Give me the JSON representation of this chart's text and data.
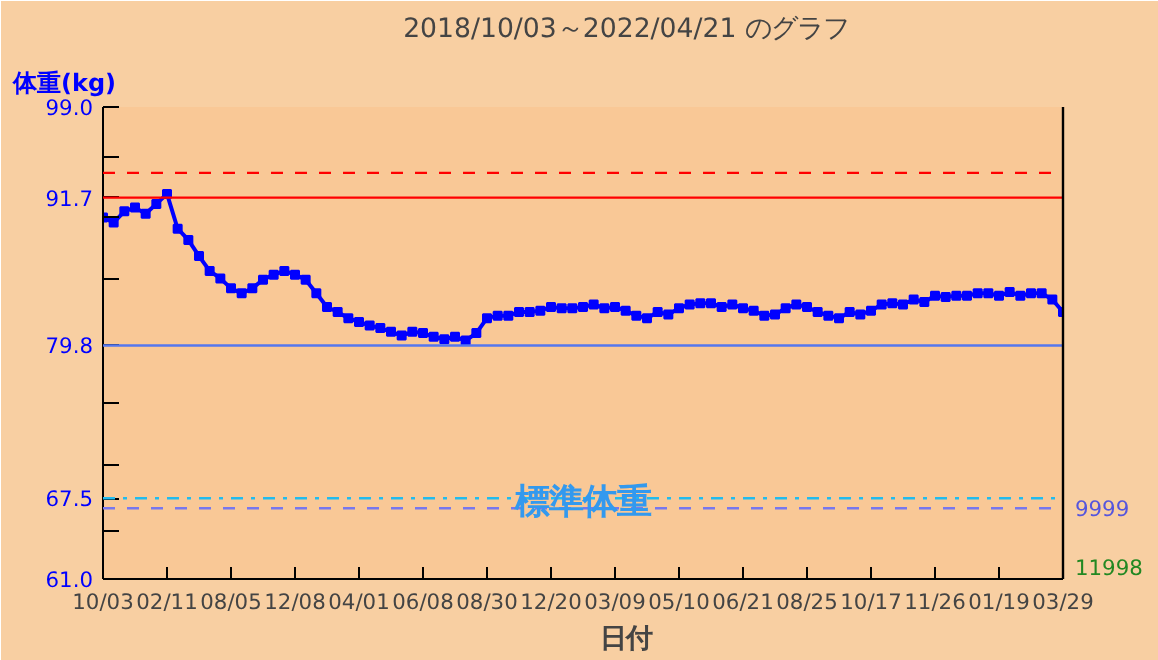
{
  "chart_data": {
    "type": "line",
    "title": "2018/10/03～2022/04/21 のグラフ",
    "xlabel": "日付",
    "ylabel": "体重(kg)",
    "categories": [
      "10/03",
      null,
      null,
      null,
      null,
      null,
      "02/11",
      null,
      null,
      null,
      null,
      null,
      "08/05",
      null,
      null,
      null,
      null,
      null,
      "12/08",
      null,
      null,
      null,
      null,
      null,
      "04/01",
      null,
      null,
      null,
      null,
      null,
      "06/08",
      null,
      null,
      null,
      null,
      null,
      "08/30",
      null,
      null,
      null,
      null,
      null,
      "12/20",
      null,
      null,
      null,
      null,
      null,
      "03/09",
      null,
      null,
      null,
      null,
      null,
      "05/10",
      null,
      null,
      null,
      null,
      null,
      "06/21",
      null,
      null,
      null,
      null,
      null,
      "08/25",
      null,
      null,
      null,
      null,
      null,
      "10/17",
      null,
      null,
      null,
      null,
      null,
      "11/26",
      null,
      null,
      null,
      null,
      null,
      "01/19",
      null,
      null,
      null,
      null,
      null,
      "03/29"
    ],
    "ylim": [
      61.0,
      99.0
    ],
    "yticks": [
      {
        "value": 61.0,
        "label": "61.0"
      },
      {
        "value": 64.9,
        "label": null
      },
      {
        "value": 67.5,
        "label": "67.5"
      },
      {
        "value": 70.2,
        "label": null
      },
      {
        "value": 75.1,
        "label": null
      },
      {
        "value": 79.8,
        "label": "79.8"
      },
      {
        "value": 85.1,
        "label": null
      },
      {
        "value": 90.1,
        "label": null
      },
      {
        "value": 91.7,
        "label": "91.7"
      },
      {
        "value": 95.0,
        "label": null
      },
      {
        "value": 99.0,
        "label": "99.0"
      }
    ],
    "marker": "square",
    "grid": false,
    "series": [
      {
        "color": "#0000ff",
        "values": [
          90.1,
          89.7,
          90.6,
          90.9,
          90.4,
          91.2,
          92.0,
          89.2,
          88.3,
          87.0,
          85.8,
          85.2,
          84.4,
          84.0,
          84.4,
          85.1,
          85.5,
          85.8,
          85.5,
          85.1,
          84.0,
          82.9,
          82.5,
          82.0,
          81.7,
          81.4,
          81.2,
          80.9,
          80.6,
          80.9,
          80.8,
          80.5,
          80.3,
          80.5,
          80.2,
          80.8,
          82.0,
          82.2,
          82.2,
          82.5,
          82.5,
          82.6,
          82.9,
          82.8,
          82.8,
          82.9,
          83.1,
          82.8,
          82.9,
          82.6,
          82.2,
          82.0,
          82.5,
          82.3,
          82.8,
          83.1,
          83.2,
          83.2,
          82.9,
          83.1,
          82.8,
          82.6,
          82.2,
          82.3,
          82.8,
          83.1,
          82.9,
          82.5,
          82.2,
          82.0,
          82.5,
          82.3,
          82.6,
          83.1,
          83.2,
          83.1,
          83.5,
          83.3,
          83.8,
          83.7,
          83.8,
          83.8,
          84.0,
          84.0,
          83.8,
          84.1,
          83.8,
          84.0,
          84.0,
          83.5,
          82.5
        ]
      }
    ],
    "ref_lines": [
      {
        "axis": "y",
        "value": 93.7,
        "color": "#ff0000",
        "line_style": "dashed"
      },
      {
        "axis": "y",
        "value": 91.7,
        "color": "#ff0000",
        "line_style": "solid"
      },
      {
        "axis": "y",
        "value": 79.8,
        "color": "#5577ee",
        "line_style": "solid"
      },
      {
        "axis": "y",
        "value": 67.5,
        "color": "#22bbee",
        "line_style": "dashdot"
      },
      {
        "axis": "y",
        "value": 66.7,
        "color": "#7777ee",
        "line_style": "dashed"
      }
    ],
    "annotations": [
      {
        "text": "標準体重",
        "y": 67.1
      },
      {
        "text": "9999",
        "y": 66.7
      },
      "11998"
    ]
  }
}
